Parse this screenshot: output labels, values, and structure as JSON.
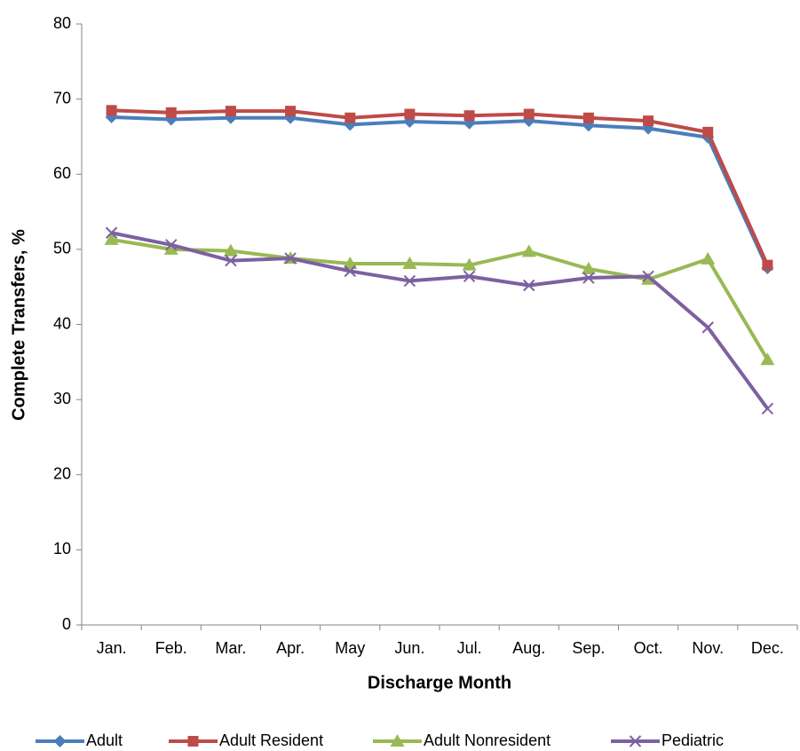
{
  "chart_data": {
    "type": "line",
    "x_label": "Discharge Month",
    "y_label": "Complete Transfers, %",
    "categories": [
      "Jan.",
      "Feb.",
      "Mar.",
      "Apr.",
      "May",
      "Jun.",
      "Jul.",
      "Aug.",
      "Sep.",
      "Oct.",
      "Nov.",
      "Dec."
    ],
    "series": [
      {
        "name": "Adult",
        "color": "#4a7ebb",
        "marker": "diamond",
        "values": [
          67.6,
          67.3,
          67.5,
          67.5,
          66.6,
          67.0,
          66.8,
          67.1,
          66.5,
          66.1,
          64.9,
          47.5
        ]
      },
      {
        "name": "Adult Resident",
        "color": "#be4b48",
        "marker": "square",
        "values": [
          68.5,
          68.2,
          68.4,
          68.4,
          67.5,
          68.0,
          67.8,
          68.0,
          67.5,
          67.1,
          65.6,
          47.9
        ]
      },
      {
        "name": "Adult Nonresident",
        "color": "#98b954",
        "marker": "triangle",
        "values": [
          51.3,
          50.0,
          49.8,
          48.8,
          48.1,
          48.1,
          47.9,
          49.7,
          47.4,
          46.0,
          48.7,
          35.3
        ]
      },
      {
        "name": "Pediatric",
        "color": "#7d60a0",
        "marker": "x",
        "values": [
          52.2,
          50.6,
          48.5,
          48.8,
          47.1,
          45.8,
          46.4,
          45.2,
          46.2,
          46.4,
          39.6,
          28.8
        ]
      }
    ],
    "ylim": [
      0,
      80
    ],
    "yticks": [
      0,
      10,
      20,
      30,
      40,
      50,
      60,
      70,
      80
    ],
    "grid": false,
    "legend": "bottom"
  }
}
